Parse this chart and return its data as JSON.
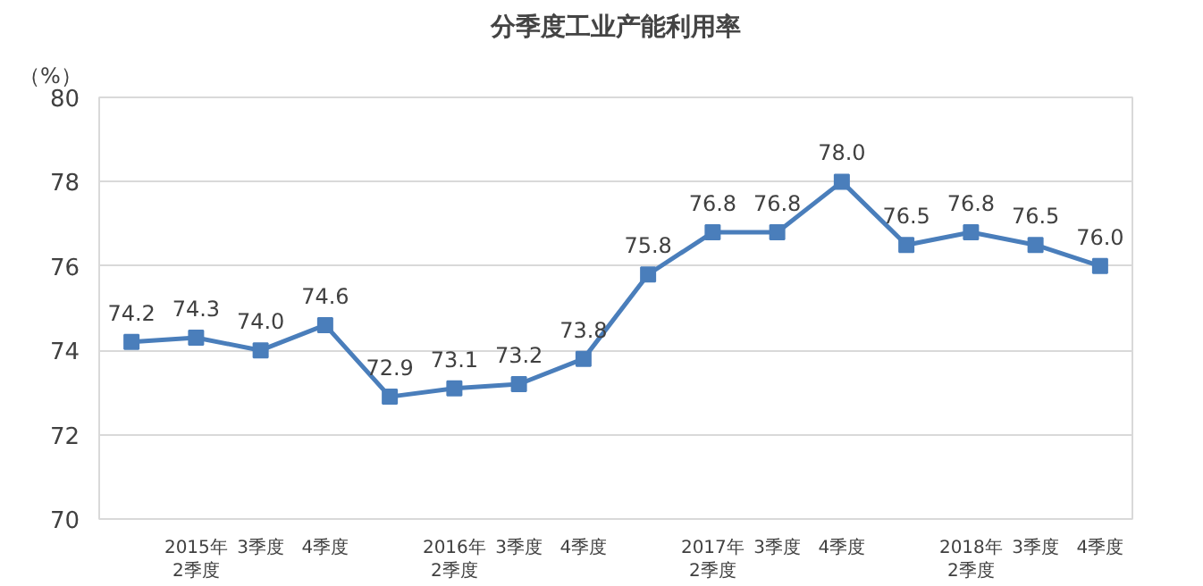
{
  "chart_data": {
    "type": "line",
    "title": "分季度工业产能利用率",
    "ylabel": "（%）",
    "categories": [
      null,
      "2015年2季度",
      "3季度",
      "4季度",
      null,
      "2016年2季度",
      "3季度",
      "4季度",
      null,
      "2017年2季度",
      "3季度",
      "4季度",
      null,
      "2018年2季度",
      "3季度",
      "4季度"
    ],
    "series": [
      {
        "color": "#4a7ebb",
        "values": [
          74.2,
          74.3,
          74.0,
          74.6,
          72.9,
          73.1,
          73.2,
          73.8,
          75.8,
          76.8,
          76.8,
          78.0,
          76.5,
          76.8,
          76.5,
          76.0
        ],
        "value_labels": [
          "74.2",
          "74.3",
          "74.0",
          "74.6",
          "72.9",
          "73.1",
          "73.2",
          "73.8",
          "75.8",
          "76.8",
          "76.8",
          "78.0",
          "76.5",
          "76.8",
          "76.5",
          "76.0"
        ]
      }
    ],
    "ylim": [
      70,
      80
    ],
    "yticks": [
      70,
      72,
      74,
      76,
      78,
      80
    ],
    "grid": "y",
    "marker": "square",
    "line_style": "solid"
  }
}
